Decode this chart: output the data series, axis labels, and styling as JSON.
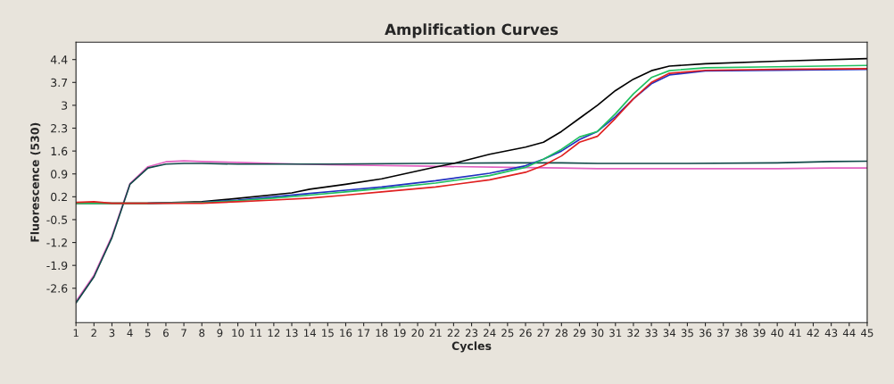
{
  "chart_data": {
    "type": "line",
    "title": "Amplification Curves",
    "xlabel": "Cycles",
    "ylabel": "Fluorescence (530)",
    "xlim": [
      1,
      45
    ],
    "xticks": [
      1,
      2,
      3,
      4,
      5,
      6,
      7,
      8,
      9,
      10,
      11,
      12,
      13,
      14,
      15,
      16,
      17,
      18,
      19,
      20,
      21,
      22,
      23,
      24,
      25,
      26,
      27,
      28,
      29,
      30,
      31,
      32,
      33,
      34,
      35,
      36,
      37,
      38,
      39,
      40,
      41,
      42,
      43,
      44,
      45
    ],
    "ylim": [
      -3.65,
      4.93
    ],
    "yticks": [
      4.4,
      3.7,
      3,
      2.3,
      1.6,
      0.9,
      0.2,
      -0.5,
      -1.2,
      -1.9,
      -2.6
    ],
    "grid": false,
    "legend": false,
    "marker": "none",
    "line_style": "solid",
    "series": [
      {
        "color": "#e060c0",
        "x": [
          1,
          2,
          3,
          4,
          5,
          6,
          7,
          8,
          10,
          12,
          15,
          20,
          25,
          28,
          30,
          35,
          40,
          43,
          45
        ],
        "values": [
          -3.0,
          -2.2,
          -1.0,
          0.6,
          1.12,
          1.27,
          1.3,
          1.28,
          1.25,
          1.22,
          1.18,
          1.14,
          1.1,
          1.08,
          1.06,
          1.06,
          1.06,
          1.08,
          1.08
        ]
      },
      {
        "color": "#104848",
        "x": [
          1,
          2,
          3,
          4,
          5,
          6,
          7,
          8,
          10,
          12,
          15,
          20,
          25,
          28,
          30,
          35,
          40,
          43,
          45
        ],
        "values": [
          -3.05,
          -2.25,
          -1.05,
          0.58,
          1.08,
          1.2,
          1.22,
          1.22,
          1.2,
          1.2,
          1.2,
          1.22,
          1.24,
          1.24,
          1.22,
          1.22,
          1.24,
          1.28,
          1.29
        ]
      },
      {
        "color": "#000000",
        "x": [
          1,
          3,
          5,
          8,
          10,
          13,
          14,
          16,
          18,
          21,
          22,
          24,
          26,
          27,
          28,
          29,
          30,
          31,
          32,
          33,
          34,
          36,
          40,
          45
        ],
        "values": [
          0.0,
          0.0,
          0.0,
          0.05,
          0.15,
          0.32,
          0.43,
          0.58,
          0.75,
          1.11,
          1.22,
          1.5,
          1.72,
          1.87,
          2.2,
          2.6,
          3.0,
          3.45,
          3.8,
          4.06,
          4.2,
          4.27,
          4.35,
          4.43
        ]
      },
      {
        "color": "#2030c0",
        "x": [
          5,
          8,
          10,
          12,
          14,
          16,
          18,
          21,
          24,
          26,
          27,
          28,
          29,
          30,
          31,
          32,
          33,
          34,
          36,
          40,
          45
        ],
        "values": [
          0.0,
          0.03,
          0.1,
          0.2,
          0.3,
          0.4,
          0.5,
          0.69,
          0.92,
          1.15,
          1.35,
          1.6,
          1.95,
          2.2,
          2.65,
          3.2,
          3.66,
          3.93,
          4.05,
          4.07,
          4.1
        ]
      },
      {
        "color": "#20c060",
        "x": [
          1,
          3,
          5,
          8,
          10,
          12,
          14,
          16,
          18,
          21,
          24,
          26,
          27,
          28,
          29,
          30,
          31,
          32,
          33,
          34,
          36,
          40,
          45
        ],
        "values": [
          0.0,
          0.0,
          0.0,
          0.02,
          0.08,
          0.16,
          0.25,
          0.35,
          0.45,
          0.62,
          0.85,
          1.1,
          1.35,
          1.65,
          2.03,
          2.2,
          2.74,
          3.35,
          3.85,
          4.06,
          4.15,
          4.18,
          4.22
        ]
      },
      {
        "color": "#e02020",
        "x": [
          1,
          2,
          3,
          5,
          8,
          10,
          12,
          14,
          16,
          18,
          21,
          24,
          26,
          27,
          28,
          29,
          30,
          31,
          32,
          33,
          34,
          36,
          40,
          45
        ],
        "values": [
          0.03,
          0.05,
          0.0,
          0.0,
          0.0,
          0.05,
          0.1,
          0.16,
          0.25,
          0.35,
          0.5,
          0.72,
          0.95,
          1.16,
          1.45,
          1.87,
          2.05,
          2.6,
          3.2,
          3.7,
          3.98,
          4.07,
          4.1,
          4.12
        ]
      }
    ]
  }
}
